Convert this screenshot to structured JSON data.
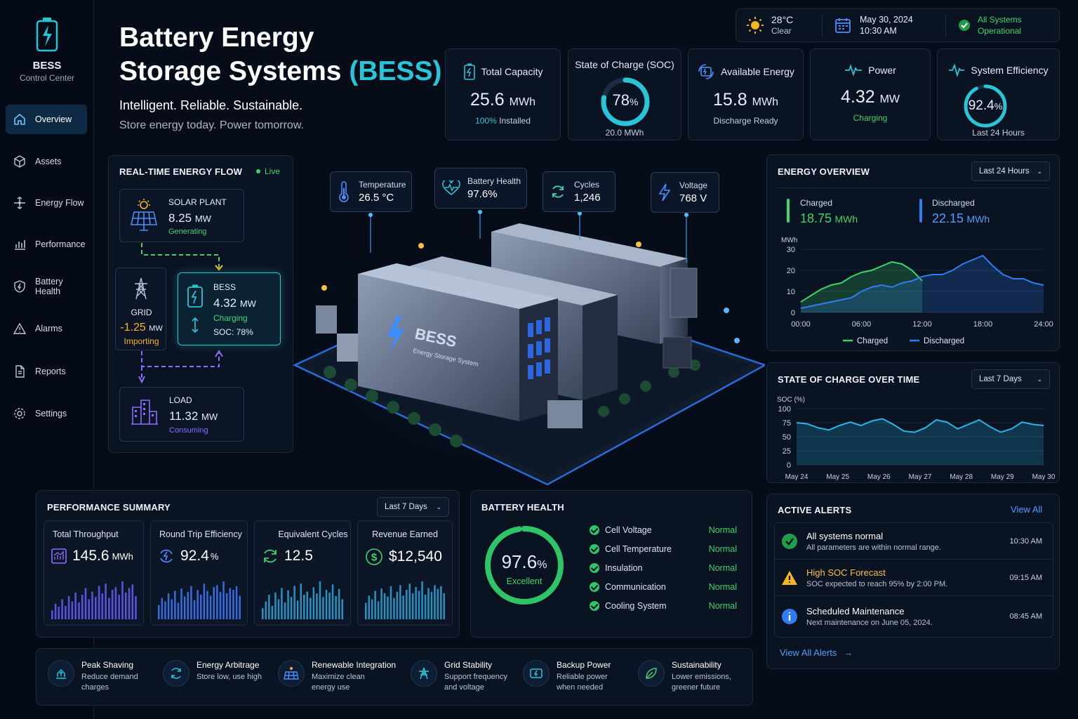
{
  "brand": {
    "title": "BESS",
    "subtitle": "Control Center"
  },
  "nav": [
    {
      "label": "Overview",
      "active": true
    },
    {
      "label": "Assets"
    },
    {
      "label": "Energy Flow"
    },
    {
      "label": "Performance"
    },
    {
      "label": "Battery Health"
    },
    {
      "label": "Alarms"
    },
    {
      "label": "Reports"
    },
    {
      "label": "Settings"
    }
  ],
  "header": {
    "title_line1": "Battery Energy",
    "title_line2": "Storage Systems",
    "title_accent": "(BESS)",
    "tagline": "Intelligent. Reliable. Sustainable.",
    "subtagline": "Store energy today. Power tomorrow."
  },
  "topbar": {
    "temp": "28°C",
    "weather": "Clear",
    "date": "May 30, 2024",
    "time": "10:30 AM",
    "status1": "All Systems",
    "status2": "Operational"
  },
  "kpis": {
    "capacity": {
      "label": "Total Capacity",
      "value": "25.6",
      "unit": "MWh",
      "sub_accent": "100%",
      "sub": "Installed"
    },
    "soc": {
      "label": "State of Charge (SOC)",
      "value": "78",
      "unit": "%",
      "sub": "20.0 MWh",
      "fraction": 0.78
    },
    "available": {
      "label": "Available Energy",
      "value": "15.8",
      "unit": "MWh",
      "sub": "Discharge Ready"
    },
    "power": {
      "label": "Power",
      "value": "4.32",
      "unit": "MW",
      "sub": "Charging"
    },
    "efficiency": {
      "label": "System Efficiency",
      "value": "92.4",
      "unit": "%",
      "sub": "Last 24 Hours",
      "fraction": 0.924
    }
  },
  "flow": {
    "title": "REAL-TIME ENERGY FLOW",
    "live": "Live",
    "solar": {
      "name": "SOLAR PLANT",
      "value": "8.25",
      "unit": "MW",
      "status": "Generating"
    },
    "grid": {
      "name": "GRID",
      "value": "-1.25",
      "unit": "MW",
      "status": "Importing"
    },
    "bess": {
      "name": "BESS",
      "value": "4.32",
      "unit": "MW",
      "status": "Charging",
      "soc": "SOC: 78%"
    },
    "load": {
      "name": "LOAD",
      "value": "11.32",
      "unit": "MW",
      "status": "Consuming"
    }
  },
  "callouts": {
    "temperature": {
      "label": "Temperature",
      "value": "26.5 °C"
    },
    "health": {
      "label": "Battery Health",
      "value": "97.6%"
    },
    "cycles": {
      "label": "Cycles",
      "value": "1,246"
    },
    "voltage": {
      "label": "Voltage",
      "value": "768 V"
    }
  },
  "scene": {
    "container_label": "BESS",
    "container_sub": "Energy Storage System"
  },
  "energy_overview": {
    "title": "ENERGY OVERVIEW",
    "range": "Last 24 Hours",
    "charged_label": "Charged",
    "charged_value": "18.75",
    "discharged_label": "Discharged",
    "discharged_value": "22.15",
    "unit": "MWh",
    "y_unit": "MWh",
    "legend_charged": "Charged",
    "legend_discharged": "Discharged"
  },
  "soc_over_time": {
    "title": "STATE OF CHARGE OVER TIME",
    "range": "Last 7 Days",
    "y_unit": "SOC (%)"
  },
  "chart_data": [
    {
      "type": "area",
      "title": "ENERGY OVERVIEW",
      "ylabel": "MWh",
      "ylim": [
        0,
        30
      ],
      "y_ticks": [
        0,
        10,
        20,
        30
      ],
      "x_ticks": [
        "00:00",
        "06:00",
        "12:00",
        "18:00",
        "24:00"
      ],
      "x": [
        0,
        1,
        2,
        3,
        4,
        5,
        6,
        7,
        8,
        9,
        10,
        11,
        12,
        13,
        14,
        15,
        16,
        17,
        18,
        19,
        20,
        21,
        22,
        23,
        24
      ],
      "series": [
        {
          "name": "Charged",
          "color": "#3fd46a",
          "values": [
            5,
            8,
            11,
            13,
            14,
            17,
            19,
            20,
            22,
            24,
            23,
            20,
            15,
            null,
            null,
            null,
            null,
            null,
            null,
            null,
            null,
            null,
            null,
            null,
            null
          ]
        },
        {
          "name": "Discharged",
          "color": "#2f7df0",
          "values": [
            2,
            3,
            4,
            5,
            6,
            7,
            10,
            12,
            13,
            12,
            14,
            15,
            17,
            18,
            18,
            20,
            23,
            25,
            27,
            22,
            18,
            16,
            16,
            14,
            13
          ]
        }
      ],
      "grid": true,
      "legend": "bottom"
    },
    {
      "type": "area",
      "title": "STATE OF CHARGE OVER TIME",
      "ylabel": "SOC (%)",
      "ylim": [
        0,
        100
      ],
      "y_ticks": [
        0,
        25,
        50,
        75,
        100
      ],
      "x_ticks": [
        "May 24",
        "May 25",
        "May 26",
        "May 27",
        "May 28",
        "May 29",
        "May 30"
      ],
      "series": [
        {
          "name": "SOC",
          "color": "#29b6e6",
          "values": [
            75,
            73,
            66,
            62,
            70,
            76,
            70,
            78,
            82,
            72,
            60,
            58,
            66,
            80,
            76,
            64,
            72,
            80,
            68,
            58,
            64,
            76,
            72,
            70
          ]
        }
      ],
      "grid": true
    },
    {
      "type": "bar",
      "title": "Total Throughput",
      "values": [
        20,
        35,
        28,
        45,
        30,
        52,
        40,
        60,
        38,
        55,
        70,
        45,
        62,
        50,
        75,
        58,
        80,
        48,
        66,
        72,
        55,
        85,
        60,
        70,
        78,
        52
      ]
    },
    {
      "type": "bar",
      "title": "Round Trip Efficiency",
      "values": [
        30,
        45,
        38,
        55,
        42,
        60,
        35,
        65,
        48,
        58,
        70,
        40,
        62,
        52,
        75,
        60,
        50,
        68,
        72,
        58,
        80,
        55,
        66,
        62,
        70,
        50
      ]
    },
    {
      "type": "bar",
      "title": "Equivalent Cycles",
      "values": [
        25,
        40,
        55,
        30,
        60,
        45,
        70,
        38,
        65,
        50,
        75,
        42,
        80,
        55,
        62,
        48,
        72,
        58,
        85,
        50,
        66,
        60,
        78,
        52,
        68,
        45
      ]
    },
    {
      "type": "bar",
      "title": "Revenue Earned",
      "values": [
        35,
        50,
        42,
        60,
        38,
        65,
        55,
        48,
        70,
        45,
        58,
        72,
        50,
        62,
        75,
        55,
        68,
        60,
        80,
        52,
        66,
        58,
        72,
        64,
        70,
        55
      ]
    }
  ],
  "performance": {
    "title": "PERFORMANCE SUMMARY",
    "range": "Last 7 Days",
    "cards": [
      {
        "label": "Total Throughput",
        "value": "145.6",
        "unit": "MWh",
        "color": "#6a5cff"
      },
      {
        "label": "Round Trip Efficiency",
        "value": "92.4",
        "unit": "%",
        "color": "#3a7bff"
      },
      {
        "label": "Equivalent Cycles",
        "value": "12.5",
        "unit": "",
        "color": "#2aa8e0"
      },
      {
        "label": "Revenue Earned",
        "value": "$12,540",
        "unit": "",
        "color": "#2aa8e0"
      }
    ]
  },
  "battery_health": {
    "title": "BATTERY HEALTH",
    "value": "97.6",
    "unit": "%",
    "status": "Excellent",
    "fraction": 0.976,
    "rows": [
      {
        "label": "Cell Voltage",
        "status": "Normal"
      },
      {
        "label": "Cell Temperature",
        "status": "Normal"
      },
      {
        "label": "Insulation",
        "status": "Normal"
      },
      {
        "label": "Communication",
        "status": "Normal"
      },
      {
        "label": "Cooling System",
        "status": "Normal"
      }
    ]
  },
  "alerts": {
    "title": "ACTIVE ALERTS",
    "view_all": "View All",
    "footer": "View All Alerts",
    "items": [
      {
        "title": "All systems normal",
        "desc": "All parameters are within normal range.",
        "time": "10:30 AM"
      },
      {
        "title": "High SOC Forecast",
        "desc": "SOC expected to reach 95% by 2:00 PM.",
        "time": "09:15 AM"
      },
      {
        "title": "Scheduled Maintenance",
        "desc": "Next maintenance on June 05, 2024.",
        "time": "08:45 AM"
      }
    ]
  },
  "features": [
    {
      "title": "Peak Shaving",
      "desc1": "Reduce demand",
      "desc2": "charges"
    },
    {
      "title": "Energy Arbitrage",
      "desc1": "Store low, use high",
      "desc2": ""
    },
    {
      "title": "Renewable Integration",
      "desc1": "Maximize clean",
      "desc2": "energy use"
    },
    {
      "title": "Grid Stability",
      "desc1": "Support frequency",
      "desc2": "and voltage"
    },
    {
      "title": "Backup Power",
      "desc1": "Reliable power",
      "desc2": "when needed"
    },
    {
      "title": "Sustainability",
      "desc1": "Lower emissions,",
      "desc2": "greener future"
    }
  ]
}
